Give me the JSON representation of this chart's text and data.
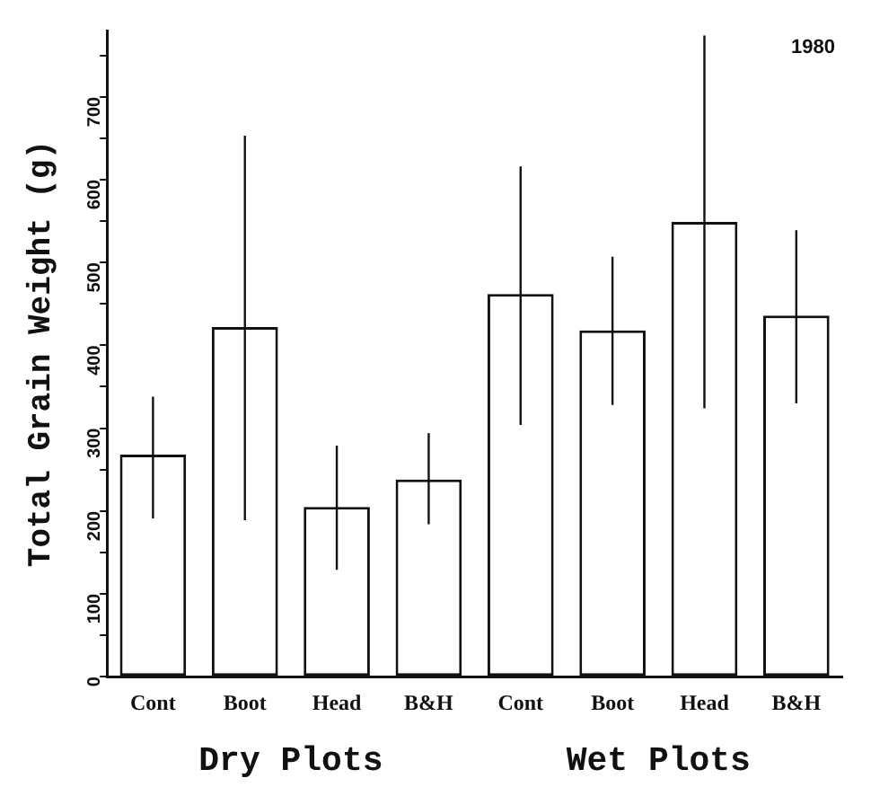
{
  "chart_data": {
    "type": "bar",
    "ylabel": "Total Grain Weight (g)",
    "categories": [
      "Cont",
      "Boot",
      "Head",
      "B&H",
      "Cont",
      "Boot",
      "Head",
      "B&H"
    ],
    "values": [
      268,
      422,
      205,
      238,
      462,
      418,
      549,
      436
    ],
    "errors": [
      [
        191,
        338
      ],
      [
        189,
        653
      ],
      [
        129,
        279
      ],
      [
        184,
        294
      ],
      [
        304,
        616
      ],
      [
        328,
        507
      ],
      [
        324,
        774
      ],
      [
        330,
        539
      ]
    ],
    "color": "#ffffff",
    "ylim": [
      0,
      780
    ],
    "yticks": [
      0,
      {
        "value": 50,
        "label": null
      },
      100,
      {
        "value": 150,
        "label": null
      },
      200,
      {
        "value": 250,
        "label": null
      },
      300,
      {
        "value": 350,
        "label": null
      },
      400,
      {
        "value": 450,
        "label": null
      },
      500,
      {
        "value": 550,
        "label": null
      },
      600,
      {
        "value": 650,
        "label": null
      },
      700,
      {
        "value": 750,
        "label": null
      }
    ],
    "annotations": [
      "Dry Plots",
      "Wet Plots",
      "1980"
    ],
    "grid": false,
    "legend": false
  }
}
